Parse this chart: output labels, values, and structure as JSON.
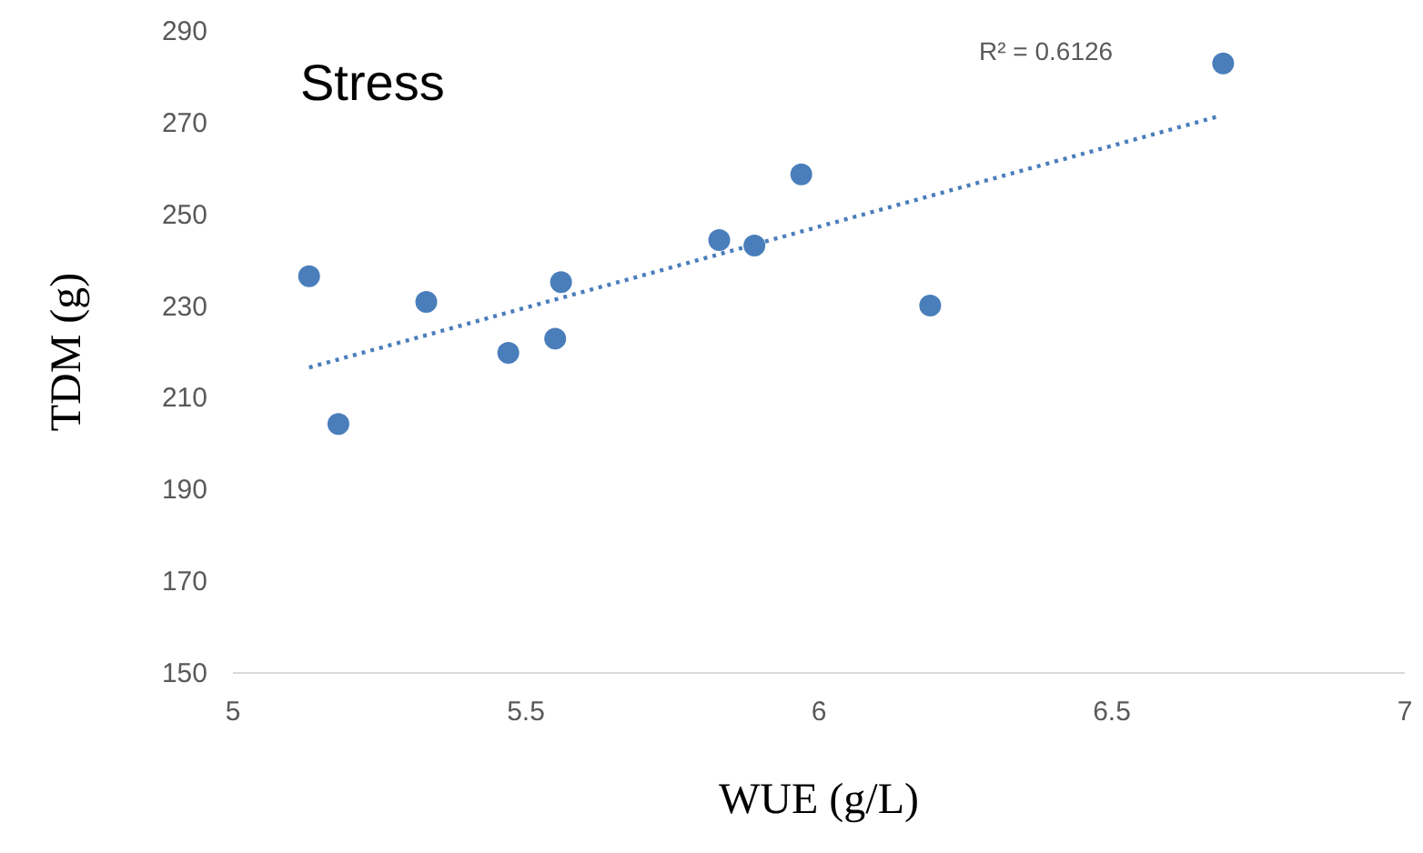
{
  "chart_data": {
    "type": "scatter",
    "title": "Stress",
    "xlabel": "WUE (g/L)",
    "ylabel": "TDM (g)",
    "xlim": [
      5,
      7
    ],
    "xticks": [
      5,
      5.5,
      6,
      6.5,
      7
    ],
    "ylim": [
      150,
      290
    ],
    "yticks": [
      150,
      170,
      190,
      210,
      230,
      250,
      270,
      290
    ],
    "grid": false,
    "annotations": [
      "R² = 0.6126"
    ],
    "series": [
      {
        "marker": "circle",
        "color": "#4a7ebb",
        "x": [
          5.13,
          5.18,
          5.33,
          5.47,
          5.55,
          5.56,
          5.83,
          5.89,
          5.97,
          6.19,
          6.69
        ],
        "values": [
          236.5,
          204.3,
          230.9,
          219.8,
          222.9,
          235.2,
          244.4,
          243.2,
          258.7,
          230.1,
          282.9
        ]
      },
      {
        "type": "line",
        "line_style": "dotted",
        "marker": "none",
        "color": "#4a7ebb",
        "x": [
          5.13,
          6.68
        ],
        "values": [
          216.6,
          271.3
        ]
      }
    ]
  }
}
